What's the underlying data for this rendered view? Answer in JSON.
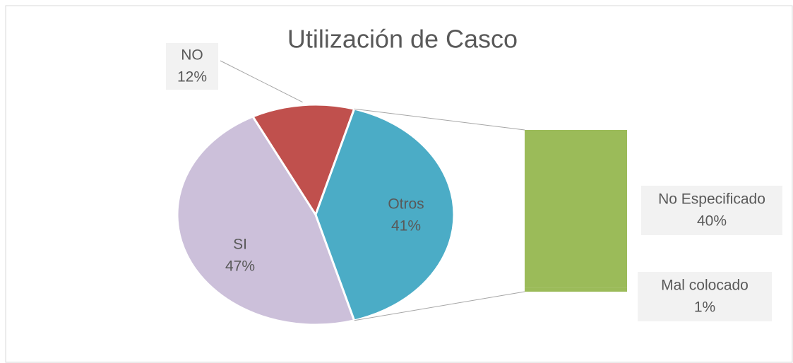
{
  "chart_data": {
    "type": "bar_of_pie",
    "title": "Utilización de Casco",
    "categories": [
      "SI",
      "NO",
      "Otros"
    ],
    "values": [
      47,
      12,
      41
    ],
    "value_labels": [
      "47%",
      "12%",
      "41%"
    ],
    "colors": [
      "#ccc0da",
      "#c0504d",
      "#4bacc6"
    ],
    "breakdown": {
      "categories": [
        "No Especificado",
        "Mal colocado"
      ],
      "values": [
        40,
        1
      ],
      "value_labels": [
        "40%",
        "1%"
      ],
      "color": "#9bbb59"
    }
  }
}
